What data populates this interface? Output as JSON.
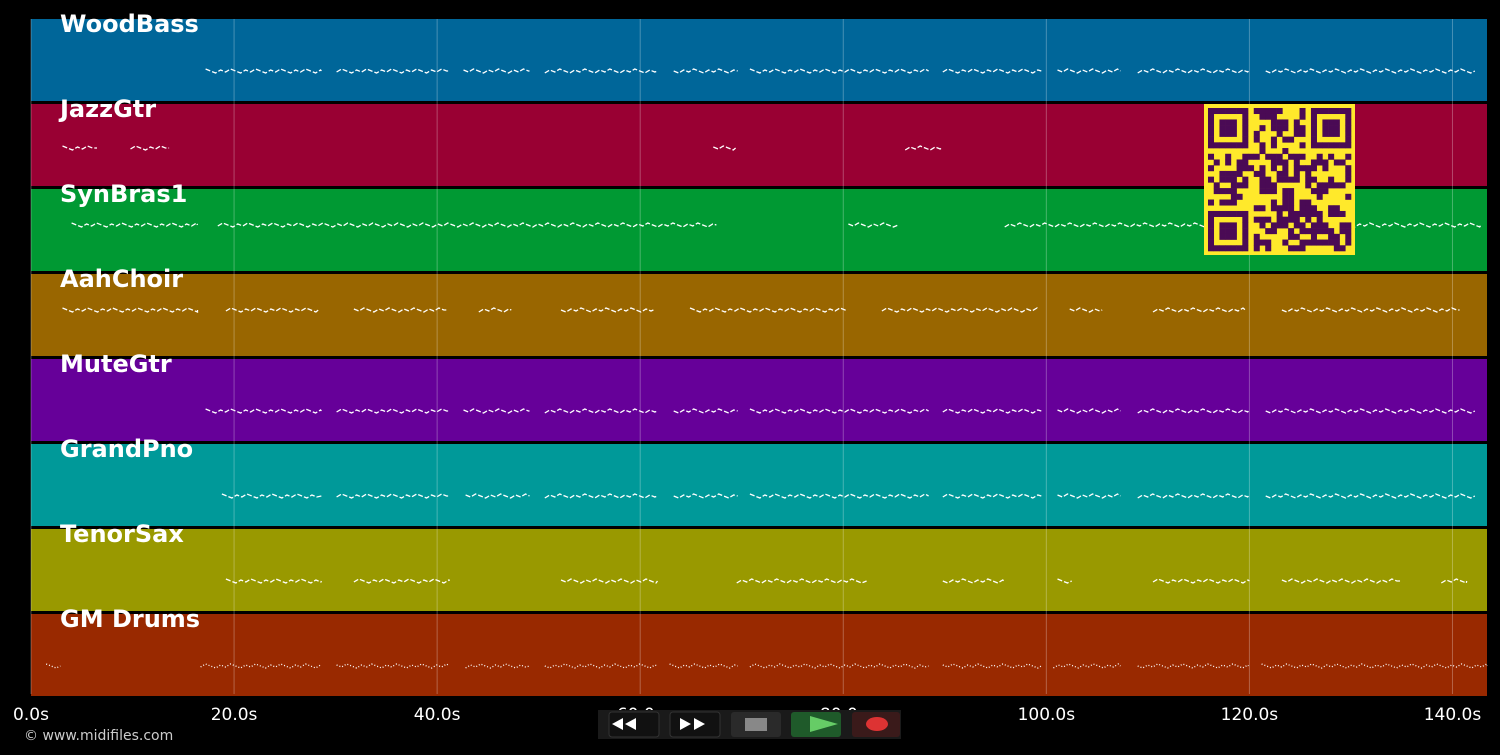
{
  "tracks": [
    {
      "name": "WoodBass",
      "color": "#006699",
      "segments": [
        [
          17.2,
          28.6
        ],
        [
          30.1,
          41.2
        ],
        [
          42.6,
          49.1
        ],
        [
          50.6,
          61.7
        ],
        [
          63.3,
          69.6
        ],
        [
          70.8,
          88.4
        ],
        [
          89.8,
          99.5
        ],
        [
          101.1,
          107.3
        ],
        [
          109.0,
          119.9
        ],
        [
          121.6,
          142.2
        ]
      ]
    },
    {
      "name": "JazzGtr",
      "color": "#990033",
      "segments": [
        [
          3.1,
          6.5
        ],
        [
          9.8,
          13.6
        ],
        [
          67.2,
          69.4
        ],
        [
          86.1,
          89.7
        ]
      ]
    },
    {
      "name": "SynBras1",
      "color": "#009933",
      "segments": [
        [
          4.0,
          16.4
        ],
        [
          18.4,
          67.5
        ],
        [
          80.5,
          85.4
        ],
        [
          95.9,
          142.8
        ]
      ]
    },
    {
      "name": "AahChoir",
      "color": "#996600",
      "segments": [
        [
          3.1,
          16.4
        ],
        [
          19.2,
          28.3
        ],
        [
          31.8,
          40.9
        ],
        [
          44.1,
          47.3
        ],
        [
          52.2,
          61.3
        ],
        [
          64.9,
          80.4
        ],
        [
          83.8,
          99.1
        ],
        [
          102.3,
          105.5
        ],
        [
          110.5,
          119.6
        ],
        [
          123.2,
          140.7
        ]
      ]
    },
    {
      "name": "MuteGtr",
      "color": "#660099",
      "segments": [
        [
          17.2,
          28.6
        ],
        [
          30.1,
          41.2
        ],
        [
          42.6,
          49.1
        ],
        [
          50.6,
          61.7
        ],
        [
          63.3,
          69.6
        ],
        [
          70.8,
          88.4
        ],
        [
          89.8,
          99.5
        ],
        [
          101.1,
          107.3
        ],
        [
          109.0,
          119.9
        ],
        [
          121.6,
          142.2
        ]
      ]
    },
    {
      "name": "GrandPno",
      "color": "#009999",
      "segments": [
        [
          18.8,
          28.6
        ],
        [
          30.1,
          41.2
        ],
        [
          42.8,
          49.1
        ],
        [
          50.6,
          61.7
        ],
        [
          63.3,
          69.6
        ],
        [
          70.8,
          88.4
        ],
        [
          89.8,
          99.5
        ],
        [
          101.1,
          107.3
        ],
        [
          109.0,
          119.9
        ],
        [
          121.6,
          142.2
        ]
      ]
    },
    {
      "name": "TenorSax",
      "color": "#999900",
      "segments": [
        [
          19.2,
          28.6
        ],
        [
          31.8,
          41.2
        ],
        [
          52.2,
          61.7
        ],
        [
          69.5,
          82.3
        ],
        [
          89.8,
          95.8
        ],
        [
          101.1,
          102.5
        ],
        [
          110.5,
          120.0
        ],
        [
          123.2,
          135.0
        ],
        [
          138.9,
          141.4
        ]
      ]
    },
    {
      "name": "GM Drums",
      "color": "#992900",
      "segments": [
        [
          1.5,
          2.9
        ],
        [
          16.7,
          28.6
        ],
        [
          30.1,
          41.2
        ],
        [
          42.8,
          49.1
        ],
        [
          50.6,
          61.7
        ],
        [
          62.9,
          69.6
        ],
        [
          70.8,
          88.4
        ],
        [
          89.8,
          99.5
        ],
        [
          100.7,
          107.3
        ],
        [
          109.0,
          119.9
        ],
        [
          121.2,
          143.4
        ]
      ]
    }
  ],
  "time_axis": {
    "xlim": [
      0,
      143.4
    ],
    "xticks": [
      {
        "value": 0,
        "label": "0.0s"
      },
      {
        "value": 20,
        "label": "20.0s"
      },
      {
        "value": 40,
        "label": "40.0s"
      },
      {
        "value": 60,
        "label": "60.0s"
      },
      {
        "value": 80,
        "label": "80.0s"
      },
      {
        "value": 100,
        "label": "100.0s"
      },
      {
        "value": 120,
        "label": "120.0s"
      },
      {
        "value": 140,
        "label": "140.0s"
      }
    ]
  },
  "footer": "© www.midifiles.com"
}
